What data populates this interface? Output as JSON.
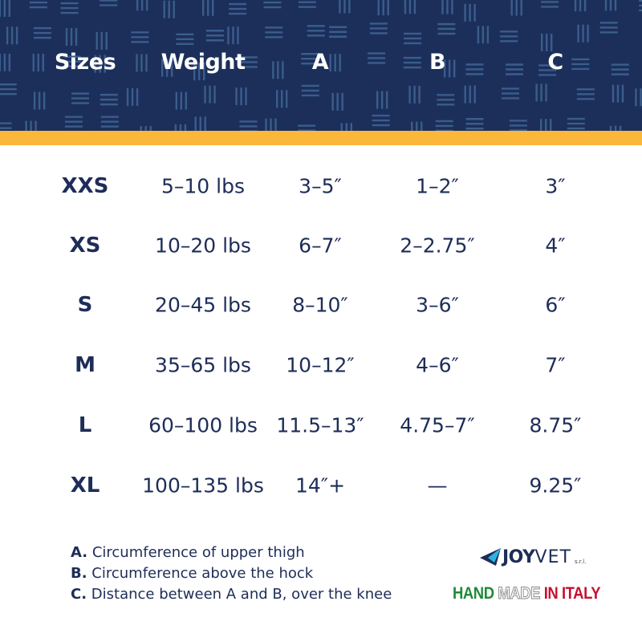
{
  "colors": {
    "header_bg": "#1c2f5a",
    "accent_stripe": "#fbb73a",
    "text": "#1e2d58",
    "pattern": "#3a5d8c"
  },
  "table": {
    "headers": [
      "Sizes",
      "Weight",
      "A",
      "B",
      "C"
    ],
    "rows": [
      [
        "XXS",
        "5–10 lbs",
        "3–5″",
        "1–2″",
        "3″"
      ],
      [
        "XS",
        "10–20 lbs",
        "6–7″",
        "2–2.75″",
        "4″"
      ],
      [
        "S",
        "20–45 lbs",
        "8–10″",
        "3–6″",
        "6″"
      ],
      [
        "M",
        "35–65 lbs",
        "10–12″",
        "4–6″",
        "7″"
      ],
      [
        "L",
        "60–100 lbs",
        "11.5–13″",
        "4.75–7″",
        "8.75″"
      ],
      [
        "XL",
        "100–135 lbs",
        "14″+",
        "—",
        "9.25″"
      ]
    ]
  },
  "notes": [
    {
      "key": "A.",
      "text": " Circumference of upper thigh"
    },
    {
      "key": "B.",
      "text": " Circumference above the hock"
    },
    {
      "key": "C.",
      "text": " Distance between A and B, over the knee"
    }
  ],
  "logo": {
    "brand_bold": "JOY",
    "brand_light": "VET",
    "suffix": "s.r.l."
  },
  "tagline": {
    "green": "HAND",
    "white": "MADE",
    "red": "IN ITALY"
  }
}
